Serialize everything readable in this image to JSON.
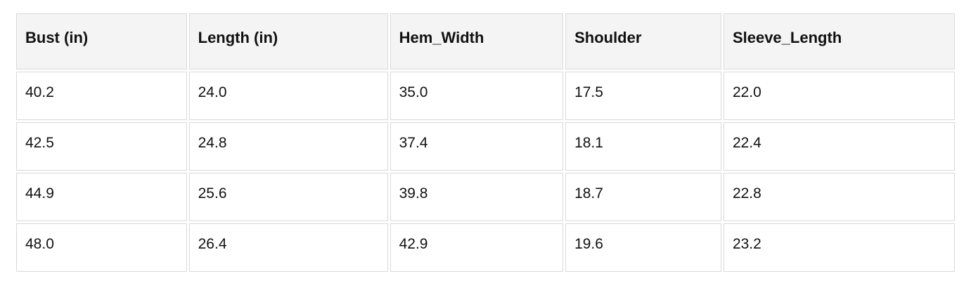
{
  "table": {
    "columns": [
      "Bust (in)",
      "Length (in)",
      "Hem_Width",
      "Shoulder",
      "Sleeve_Length"
    ],
    "rows": [
      [
        "40.2",
        "24.0",
        "35.0",
        "17.5",
        "22.0"
      ],
      [
        "42.5",
        "24.8",
        "37.4",
        "18.1",
        "22.4"
      ],
      [
        "44.9",
        "25.6",
        "39.8",
        "18.7",
        "22.8"
      ],
      [
        "48.0",
        "26.4",
        "42.9",
        "19.6",
        "23.2"
      ]
    ]
  },
  "colors": {
    "page_bg": "#ffffff",
    "header_bg": "#f4f4f4",
    "cell_bg": "#ffffff",
    "border": "#d9d9d9",
    "text": "#111111"
  },
  "chart_data": {
    "type": "table",
    "columns": [
      "Bust (in)",
      "Length (in)",
      "Hem_Width",
      "Shoulder",
      "Sleeve_Length"
    ],
    "rows": [
      [
        40.2,
        24.0,
        35.0,
        17.5,
        22.0
      ],
      [
        42.5,
        24.8,
        37.4,
        18.1,
        22.4
      ],
      [
        44.9,
        25.6,
        39.8,
        18.7,
        22.8
      ],
      [
        48.0,
        26.4,
        42.9,
        19.6,
        23.2
      ]
    ],
    "legend": "none",
    "grid": "cell-borders"
  }
}
